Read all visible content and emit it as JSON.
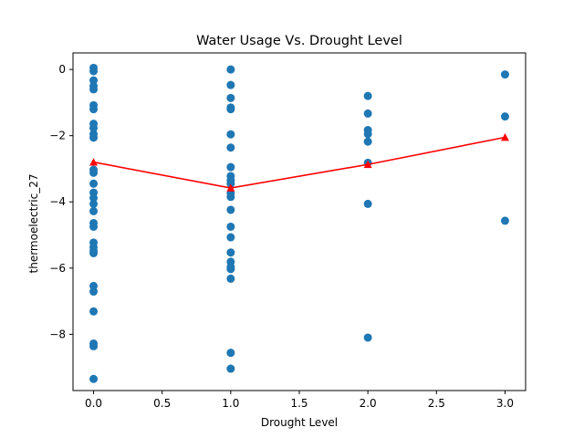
{
  "chart_data": {
    "type": "scatter",
    "title": "Water Usage Vs. Drought Level",
    "xlabel": "Drought Level",
    "ylabel": "thermoelectric_27",
    "xlim": [
      -0.15,
      3.15
    ],
    "ylim": [
      -9.7,
      0.5
    ],
    "xticks": [
      0.0,
      0.5,
      1.0,
      1.5,
      2.0,
      2.5,
      3.0
    ],
    "xtick_labels": [
      "0.0",
      "0.5",
      "1.0",
      "1.5",
      "2.0",
      "2.5",
      "3.0"
    ],
    "yticks": [
      0,
      -2,
      -4,
      -6,
      -8
    ],
    "ytick_labels": [
      "0",
      "−2",
      "−4",
      "−6",
      "−8"
    ],
    "grid": false,
    "colors": {
      "points": "#1f77b4",
      "mean_line": "#ff0000"
    },
    "series": [
      {
        "marker": "circle",
        "points": [
          {
            "x": 0,
            "y": 0.05
          },
          {
            "x": 0,
            "y": -0.05
          },
          {
            "x": 0,
            "y": -0.33
          },
          {
            "x": 0,
            "y": -0.5
          },
          {
            "x": 0,
            "y": -0.6
          },
          {
            "x": 0,
            "y": -1.08
          },
          {
            "x": 0,
            "y": -1.2
          },
          {
            "x": 0,
            "y": -1.64
          },
          {
            "x": 0,
            "y": -1.77
          },
          {
            "x": 0,
            "y": -1.95
          },
          {
            "x": 0,
            "y": -2.06
          },
          {
            "x": 0,
            "y": -3.03
          },
          {
            "x": 0,
            "y": -3.12
          },
          {
            "x": 0,
            "y": -3.45
          },
          {
            "x": 0,
            "y": -3.72
          },
          {
            "x": 0,
            "y": -3.88
          },
          {
            "x": 0,
            "y": -4.06
          },
          {
            "x": 0,
            "y": -4.28
          },
          {
            "x": 0,
            "y": -4.64
          },
          {
            "x": 0,
            "y": -4.75
          },
          {
            "x": 0,
            "y": -5.23
          },
          {
            "x": 0,
            "y": -5.37
          },
          {
            "x": 0,
            "y": -5.48
          },
          {
            "x": 0,
            "y": -5.55
          },
          {
            "x": 0,
            "y": -6.54
          },
          {
            "x": 0,
            "y": -6.71
          },
          {
            "x": 0,
            "y": -7.31
          },
          {
            "x": 0,
            "y": -8.28
          },
          {
            "x": 0,
            "y": -8.36
          },
          {
            "x": 0,
            "y": -9.35
          },
          {
            "x": 1,
            "y": 0.0
          },
          {
            "x": 1,
            "y": -0.47
          },
          {
            "x": 1,
            "y": -0.86
          },
          {
            "x": 1,
            "y": -1.15
          },
          {
            "x": 1,
            "y": -1.2
          },
          {
            "x": 1,
            "y": -1.96
          },
          {
            "x": 1,
            "y": -2.36
          },
          {
            "x": 1,
            "y": -2.95
          },
          {
            "x": 1,
            "y": -3.22
          },
          {
            "x": 1,
            "y": -3.35
          },
          {
            "x": 1,
            "y": -3.45
          },
          {
            "x": 1,
            "y": -3.73
          },
          {
            "x": 1,
            "y": -3.85
          },
          {
            "x": 1,
            "y": -4.24
          },
          {
            "x": 1,
            "y": -4.75
          },
          {
            "x": 1,
            "y": -5.07
          },
          {
            "x": 1,
            "y": -5.53
          },
          {
            "x": 1,
            "y": -5.81
          },
          {
            "x": 1,
            "y": -5.97
          },
          {
            "x": 1,
            "y": -6.03
          },
          {
            "x": 1,
            "y": -6.32
          },
          {
            "x": 1,
            "y": -8.56
          },
          {
            "x": 1,
            "y": -9.04
          },
          {
            "x": 2,
            "y": -0.8
          },
          {
            "x": 2,
            "y": -1.33
          },
          {
            "x": 2,
            "y": -1.83
          },
          {
            "x": 2,
            "y": -1.95
          },
          {
            "x": 2,
            "y": -2.18
          },
          {
            "x": 2,
            "y": -2.82
          },
          {
            "x": 2,
            "y": -4.06
          },
          {
            "x": 2,
            "y": -8.1
          },
          {
            "x": 3,
            "y": -0.15
          },
          {
            "x": 3,
            "y": -1.42
          },
          {
            "x": 3,
            "y": -4.57
          }
        ]
      },
      {
        "marker": "triangle",
        "type": "line",
        "points": [
          {
            "x": 0,
            "y": -2.8
          },
          {
            "x": 1,
            "y": -3.58
          },
          {
            "x": 2,
            "y": -2.87
          },
          {
            "x": 3,
            "y": -2.05
          }
        ]
      }
    ]
  }
}
